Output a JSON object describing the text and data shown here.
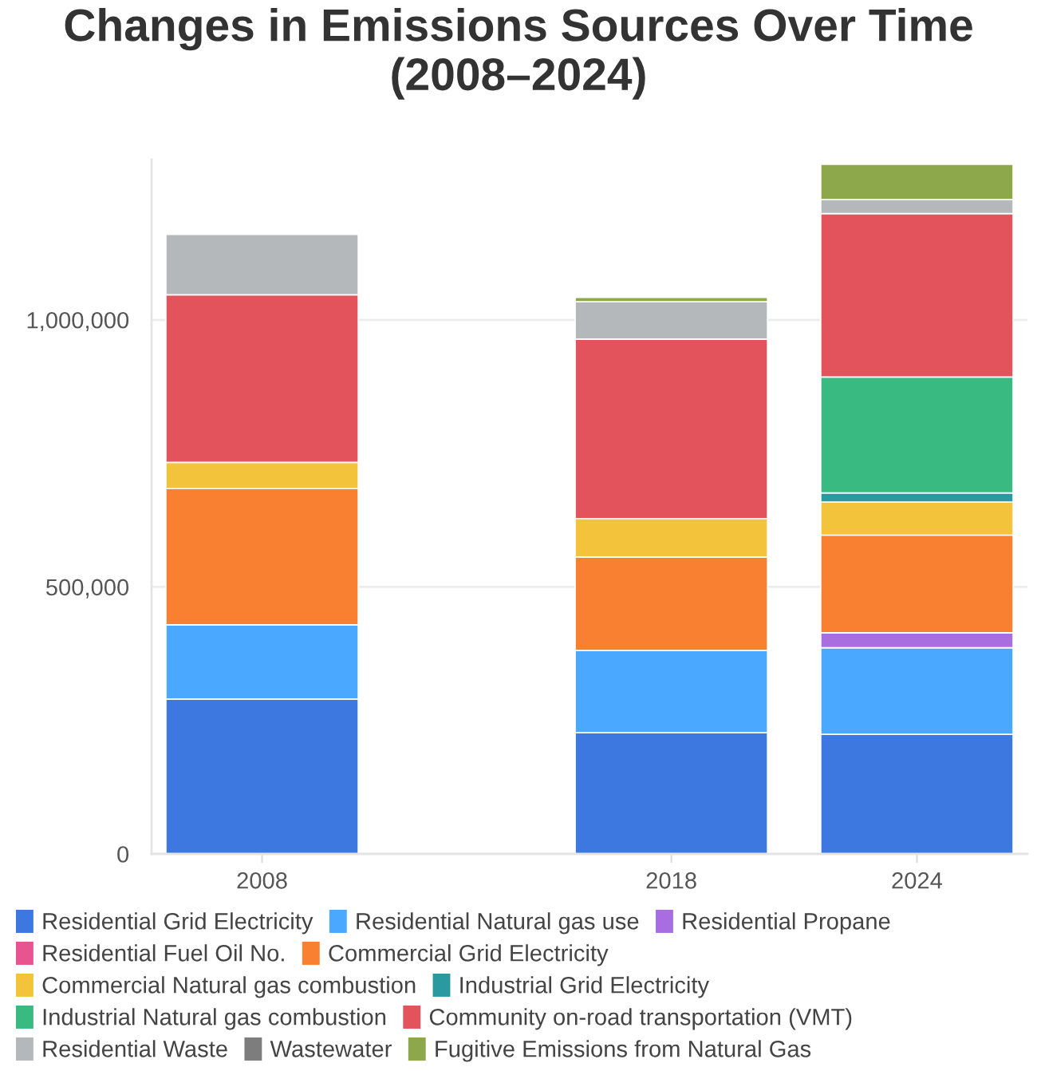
{
  "chart_data": {
    "type": "bar",
    "stacked": true,
    "title": "Changes in Emissions Sources Over Time (2008–2024)",
    "x": [
      2008,
      2018,
      2024
    ],
    "xlim": [
      2005.3,
      2026.7
    ],
    "xticks": [
      2008,
      2018,
      2024
    ],
    "ylim": [
      0,
      1300000
    ],
    "yticks": [
      0,
      {
        "value": 500000,
        "label": "500,000"
      },
      {
        "value": 1000000,
        "label": "1,000,000"
      }
    ],
    "grid": "y",
    "legend": "bottom",
    "series": [
      {
        "name": "Residential Grid Electricity",
        "color": "#3d78e0",
        "values": [
          290000,
          227000,
          224000
        ]
      },
      {
        "name": "Residential Natural gas use",
        "color": "#4aa8fe",
        "values": [
          139000,
          154000,
          162000
        ]
      },
      {
        "name": "Residential Propane",
        "color": "#a86ee0",
        "values": [
          null,
          null,
          28000
        ]
      },
      {
        "name": "Residential Fuel Oil No.",
        "color": "#e8548f",
        "values": [
          null,
          null,
          null
        ]
      },
      {
        "name": "Commercial Grid Electricity",
        "color": "#f88030",
        "values": [
          255000,
          175000,
          183000
        ]
      },
      {
        "name": "Commercial Natural gas combustion",
        "color": "#f3c33c",
        "values": [
          49000,
          72000,
          62000
        ]
      },
      {
        "name": "Industrial Grid Electricity",
        "color": "#2a9aa0",
        "values": [
          null,
          null,
          17000
        ]
      },
      {
        "name": "Industrial Natural gas combustion",
        "color": "#38ba80",
        "values": [
          null,
          null,
          217000
        ]
      },
      {
        "name": "Community on-road transportation (VMT)",
        "color": "#e2535c",
        "values": [
          314000,
          336000,
          306000
        ]
      },
      {
        "name": "Residential Waste",
        "color": "#b5b8bb",
        "values": [
          113000,
          70000,
          26000
        ]
      },
      {
        "name": "Wastewater",
        "color": "#7d7d7d",
        "values": [
          null,
          null,
          null
        ]
      },
      {
        "name": "Fugitive Emissions from Natural Gas",
        "color": "#8da84b",
        "values": [
          null,
          8000,
          66000
        ]
      }
    ]
  }
}
